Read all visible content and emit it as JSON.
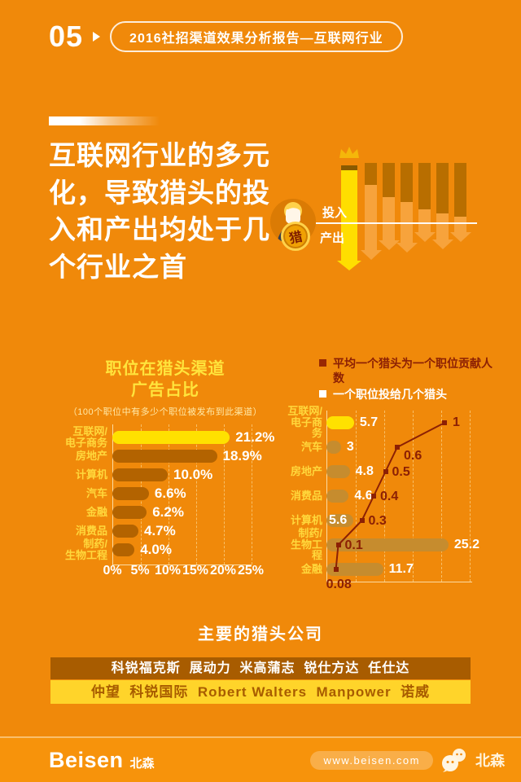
{
  "header": {
    "page_number": "05",
    "title": "2016社招渠道效果分析报告—互联网行业"
  },
  "intro": {
    "heading_lines": [
      "互联网行业的多元",
      "化，导致猎头的投",
      "入和产出均处于几",
      "个行业之首"
    ],
    "avatar_badge": "猎",
    "input_label": "投入",
    "output_label": "产出"
  },
  "chart_data": [
    {
      "type": "bar",
      "orientation": "horizontal",
      "title_lines": [
        "职位在猎头渠道",
        "广告占比"
      ],
      "subtitle": "（100个职位中有多少个职位被发布到此渠道）",
      "categories": [
        "互联网/\n电子商务",
        "房地产",
        "计算机",
        "汽车",
        "金融",
        "消费品",
        "制药/\n生物工程"
      ],
      "values": [
        21.2,
        18.9,
        10.0,
        6.6,
        6.2,
        4.7,
        4.0
      ],
      "value_labels": [
        "21.2%",
        "18.9%",
        "10.0%",
        "6.6%",
        "6.2%",
        "4.7%",
        "4.0%"
      ],
      "xticks": [
        "0%",
        "5%",
        "10%",
        "15%",
        "20%",
        "25%"
      ],
      "xlim": [
        0,
        25
      ],
      "grid": true,
      "highlight_index": 0,
      "colors": {
        "highlight_bar": "#FFE100",
        "bar": "#B36300",
        "category": "#FFD83C",
        "value": "#FFFFFF"
      }
    },
    {
      "type": "bar+line",
      "orientation": "horizontal",
      "legend": [
        {
          "label": "平均一个猎头为一个职位贡献人数",
          "color": "#8C2004",
          "series": "line"
        },
        {
          "label": "一个职位投给几个猎头",
          "color": "#FFFFFF",
          "series": "bar"
        }
      ],
      "categories": [
        "互联网/\n电子商务",
        "汽车",
        "房地产",
        "消费品",
        "计算机",
        "制药/\n生物工程",
        "金融"
      ],
      "series": [
        {
          "name": "一个职位投给几个猎头",
          "type": "bar",
          "values": [
            5.7,
            3,
            4.8,
            4.6,
            5.6,
            25.2,
            11.7
          ],
          "value_labels": [
            "5.7",
            "3",
            "4.8",
            "4.6",
            "5.6",
            "25.2",
            "11.7"
          ]
        },
        {
          "name": "平均一个猎头为一个职位贡献人数",
          "type": "line",
          "values": [
            1,
            0.6,
            0.5,
            0.4,
            0.3,
            0.1,
            0.08
          ],
          "value_labels": [
            "1",
            "0.6",
            "0.5",
            "0.4",
            "0.3",
            "0.1",
            "0.08"
          ],
          "color": "#8C2004"
        }
      ],
      "highlight_index": 0,
      "colors": {
        "highlight_bar": "#FFE100",
        "bar": "#C68C2E"
      }
    }
  ],
  "companies": {
    "title": "主要的猎头公司",
    "row1": "科锐福克斯  展动力  米高蒲志  锐仕方达  任仕达",
    "row2": "仲望  科锐国际  Robert Walters  Manpower  诺威"
  },
  "footer": {
    "logo_text": "Beisen",
    "logo_suffix": "北森",
    "url": "www.beisen.com",
    "wechat_name": "北森"
  }
}
